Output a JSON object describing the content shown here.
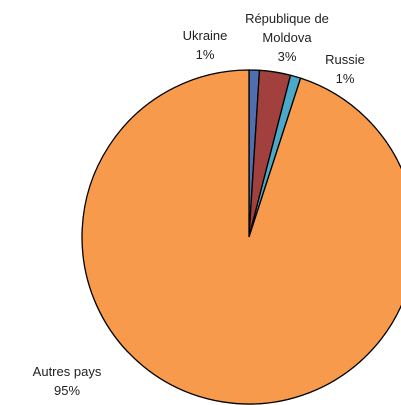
{
  "chart_data": {
    "type": "pie",
    "categories": [
      "Ukraine",
      "République de Moldova",
      "Russie",
      "Autres pays"
    ],
    "values": [
      1,
      3,
      1,
      95
    ],
    "value_labels": [
      "1%",
      "3%",
      "1%",
      "95%"
    ],
    "colors": [
      "#4f6fb0",
      "#a2403d",
      "#4aa8c8",
      "#f79a4c"
    ]
  }
}
